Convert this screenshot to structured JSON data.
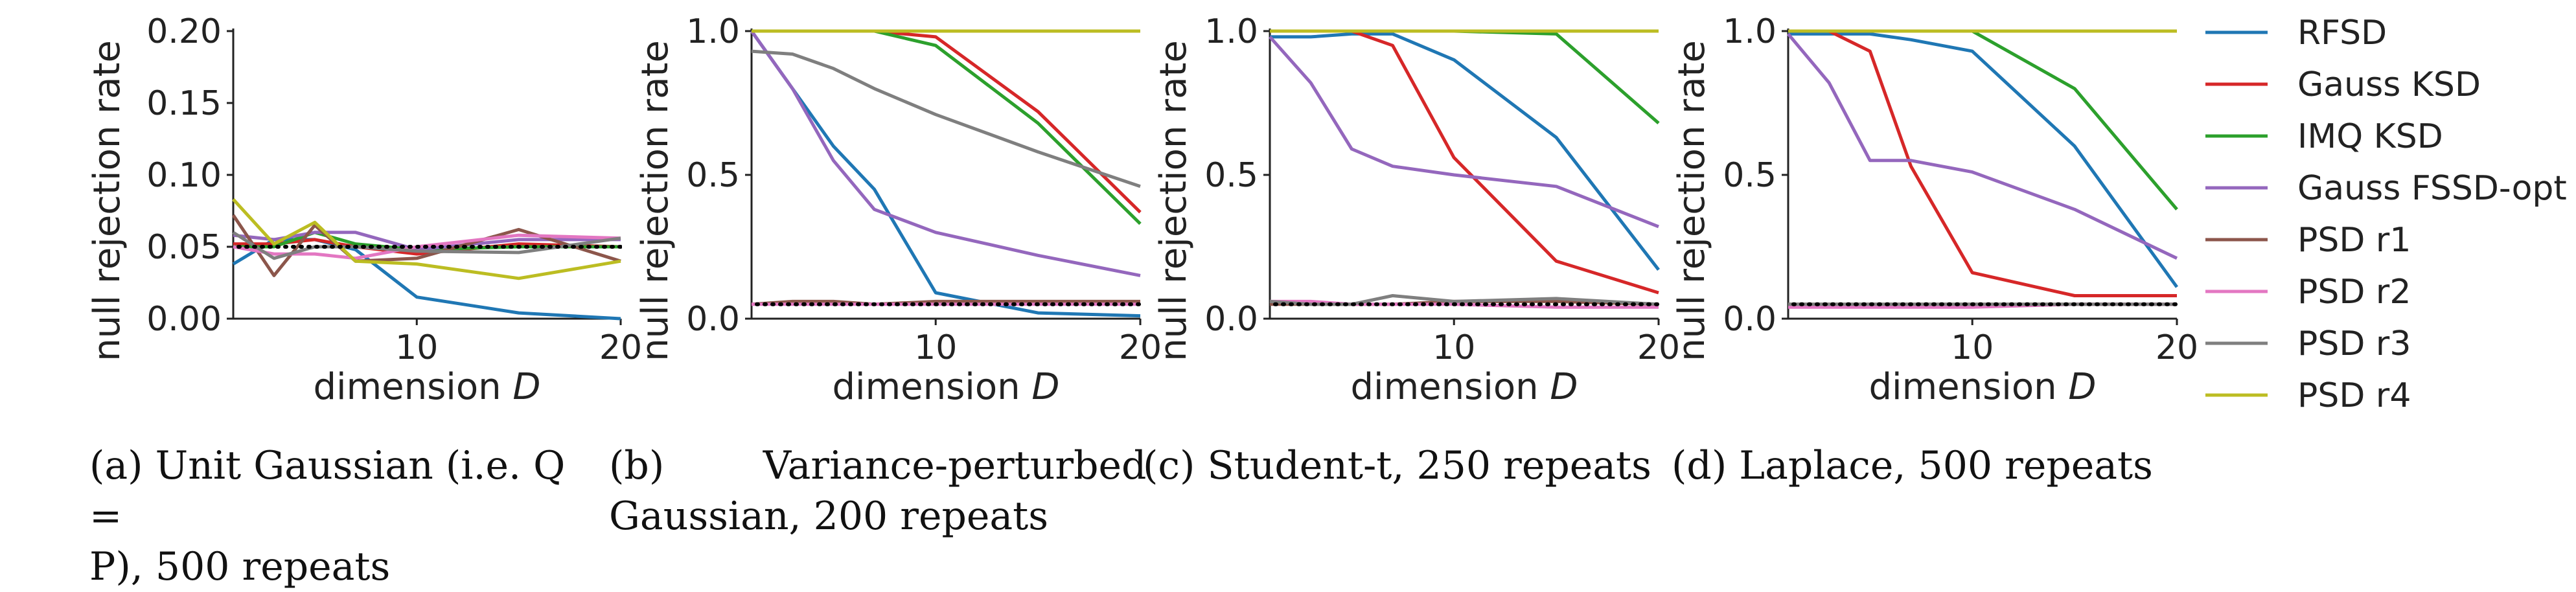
{
  "chart_data": [
    {
      "type": "line",
      "panel": "a",
      "xlabel": "dimension D",
      "ylabel": "null rejection rate",
      "xlim": [
        1,
        20
      ],
      "ylim": [
        0,
        0.2
      ],
      "xticks": [
        10,
        20
      ],
      "xtick_labels": [
        "10",
        "20"
      ],
      "yticks": [
        0.0,
        0.05,
        0.1,
        0.15,
        0.2
      ],
      "ytick_labels": [
        "0.00",
        "0.05",
        "0.10",
        "0.15",
        "0.20"
      ],
      "reference_line": 0.05,
      "x": [
        1,
        3,
        5,
        7,
        10,
        15,
        20
      ],
      "series": [
        {
          "name": "RFSD",
          "values": [
            0.038,
            0.055,
            0.055,
            0.048,
            0.015,
            0.004,
            0.0
          ]
        },
        {
          "name": "Gauss KSD",
          "values": [
            0.052,
            0.052,
            0.055,
            0.05,
            0.045,
            0.052,
            0.05
          ]
        },
        {
          "name": "IMQ KSD",
          "values": [
            0.05,
            0.05,
            0.06,
            0.052,
            0.048,
            0.05,
            0.05
          ]
        },
        {
          "name": "Gauss FSSD-opt",
          "values": [
            0.058,
            0.055,
            0.06,
            0.06,
            0.048,
            0.055,
            0.055
          ]
        },
        {
          "name": "PSD r1",
          "values": [
            0.072,
            0.03,
            0.065,
            0.04,
            0.042,
            0.062,
            0.04
          ]
        },
        {
          "name": "PSD r2",
          "values": [
            0.05,
            0.045,
            0.045,
            0.042,
            0.05,
            0.058,
            0.056
          ]
        },
        {
          "name": "PSD r3",
          "values": [
            0.06,
            0.042,
            0.05,
            0.05,
            0.047,
            0.046,
            0.056
          ]
        },
        {
          "name": "PSD r4",
          "values": [
            0.083,
            0.052,
            0.067,
            0.04,
            0.038,
            0.028,
            0.04
          ]
        }
      ]
    },
    {
      "type": "line",
      "panel": "b",
      "xlabel": "dimension D",
      "ylabel": "null rejection rate",
      "xlim": [
        1,
        20
      ],
      "ylim": [
        0,
        1.0
      ],
      "xticks": [
        10,
        20
      ],
      "xtick_labels": [
        "10",
        "20"
      ],
      "yticks": [
        0.0,
        0.5,
        1.0
      ],
      "ytick_labels": [
        "0.0",
        "0.5",
        "1.0"
      ],
      "reference_line": 0.05,
      "x": [
        1,
        3,
        5,
        7,
        10,
        15,
        20
      ],
      "series": [
        {
          "name": "RFSD",
          "values": [
            1.0,
            0.8,
            0.6,
            0.45,
            0.09,
            0.02,
            0.01
          ]
        },
        {
          "name": "Gauss KSD",
          "values": [
            1.0,
            1.0,
            1.0,
            1.0,
            0.98,
            0.72,
            0.37
          ]
        },
        {
          "name": "IMQ KSD",
          "values": [
            1.0,
            1.0,
            1.0,
            1.0,
            0.95,
            0.68,
            0.33
          ]
        },
        {
          "name": "Gauss FSSD-opt",
          "values": [
            1.0,
            0.8,
            0.55,
            0.38,
            0.3,
            0.22,
            0.15
          ]
        },
        {
          "name": "PSD r1",
          "values": [
            0.05,
            0.06,
            0.06,
            0.05,
            0.06,
            0.06,
            0.06
          ]
        },
        {
          "name": "PSD r2",
          "values": [
            0.05,
            0.05,
            0.05,
            0.05,
            0.05,
            0.05,
            0.05
          ]
        },
        {
          "name": "PSD r3",
          "values": [
            0.93,
            0.92,
            0.87,
            0.8,
            0.71,
            0.58,
            0.46
          ]
        },
        {
          "name": "PSD r4",
          "values": [
            1.0,
            1.0,
            1.0,
            1.0,
            1.0,
            1.0,
            1.0
          ]
        }
      ]
    },
    {
      "type": "line",
      "panel": "c",
      "xlabel": "dimension D",
      "ylabel": "null rejection rate",
      "xlim": [
        1,
        20
      ],
      "ylim": [
        0,
        1.0
      ],
      "xticks": [
        10,
        20
      ],
      "xtick_labels": [
        "10",
        "20"
      ],
      "yticks": [
        0.0,
        0.5,
        1.0
      ],
      "ytick_labels": [
        "0.0",
        "0.5",
        "1.0"
      ],
      "reference_line": 0.05,
      "x": [
        1,
        3,
        5,
        7,
        10,
        15,
        20
      ],
      "series": [
        {
          "name": "RFSD",
          "values": [
            0.98,
            0.98,
            0.99,
            0.99,
            0.9,
            0.63,
            0.17
          ]
        },
        {
          "name": "Gauss KSD",
          "values": [
            1.0,
            1.0,
            1.0,
            0.95,
            0.56,
            0.2,
            0.09
          ]
        },
        {
          "name": "IMQ KSD",
          "values": [
            1.0,
            1.0,
            1.0,
            1.0,
            1.0,
            0.99,
            0.68
          ]
        },
        {
          "name": "Gauss FSSD-opt",
          "values": [
            0.98,
            0.82,
            0.59,
            0.53,
            0.5,
            0.46,
            0.32
          ]
        },
        {
          "name": "PSD r1",
          "values": [
            0.05,
            0.05,
            0.05,
            0.05,
            0.06,
            0.06,
            0.05
          ]
        },
        {
          "name": "PSD r2",
          "values": [
            0.06,
            0.06,
            0.05,
            0.05,
            0.05,
            0.04,
            0.04
          ]
        },
        {
          "name": "PSD r3",
          "values": [
            0.06,
            0.05,
            0.05,
            0.08,
            0.06,
            0.07,
            0.05
          ]
        },
        {
          "name": "PSD r4",
          "values": [
            1.0,
            1.0,
            1.0,
            1.0,
            1.0,
            1.0,
            1.0
          ]
        }
      ]
    },
    {
      "type": "line",
      "panel": "d",
      "xlabel": "dimension D",
      "ylabel": "null rejection rate",
      "xlim": [
        1,
        20
      ],
      "ylim": [
        0,
        1.0
      ],
      "xticks": [
        10,
        20
      ],
      "xtick_labels": [
        "10",
        "20"
      ],
      "yticks": [
        0.0,
        0.5,
        1.0
      ],
      "ytick_labels": [
        "0.0",
        "0.5",
        "1.0"
      ],
      "reference_line": 0.05,
      "x": [
        1,
        3,
        5,
        7,
        10,
        15,
        20
      ],
      "series": [
        {
          "name": "RFSD",
          "values": [
            0.99,
            0.99,
            0.99,
            0.97,
            0.93,
            0.6,
            0.11
          ]
        },
        {
          "name": "Gauss KSD",
          "values": [
            1.0,
            1.0,
            0.93,
            0.53,
            0.16,
            0.08,
            0.08
          ]
        },
        {
          "name": "IMQ KSD",
          "values": [
            1.0,
            1.0,
            1.0,
            1.0,
            1.0,
            0.8,
            0.38
          ]
        },
        {
          "name": "Gauss FSSD-opt",
          "values": [
            0.99,
            0.82,
            0.55,
            0.55,
            0.51,
            0.38,
            0.21
          ]
        },
        {
          "name": "PSD r1",
          "values": [
            0.05,
            0.05,
            0.05,
            0.05,
            0.05,
            0.05,
            0.05
          ]
        },
        {
          "name": "PSD r2",
          "values": [
            0.04,
            0.04,
            0.04,
            0.04,
            0.04,
            0.05,
            0.05
          ]
        },
        {
          "name": "PSD r3",
          "values": [
            0.05,
            0.05,
            0.05,
            0.05,
            0.05,
            0.05,
            0.05
          ]
        },
        {
          "name": "PSD r4",
          "values": [
            1.0,
            1.0,
            1.0,
            1.0,
            1.0,
            1.0,
            1.0
          ]
        }
      ]
    }
  ],
  "legend": {
    "placement": "right",
    "entries": [
      {
        "name": "RFSD",
        "color": "#1f77b4"
      },
      {
        "name": "Gauss KSD",
        "color": "#d62728"
      },
      {
        "name": "IMQ KSD",
        "color": "#2ca02c"
      },
      {
        "name": "Gauss FSSD-opt",
        "color": "#9467bd"
      },
      {
        "name": "PSD r1",
        "color": "#8c564b"
      },
      {
        "name": "PSD r2",
        "color": "#e377c2"
      },
      {
        "name": "PSD r3",
        "color": "#7f7f7f"
      },
      {
        "name": "PSD r4",
        "color": "#bcbd22"
      }
    ]
  },
  "captions": {
    "a_line1": "(a) Unit Gaussian (i.e. Q =",
    "a_line2": "P), 500 repeats",
    "b_line1": "(b)        Variance-perturbed",
    "b_line2": "Gaussian, 200 repeats",
    "c_line1": "(c) Student-t, 250 repeats",
    "d_line1": "(d) Laplace, 500 repeats"
  }
}
